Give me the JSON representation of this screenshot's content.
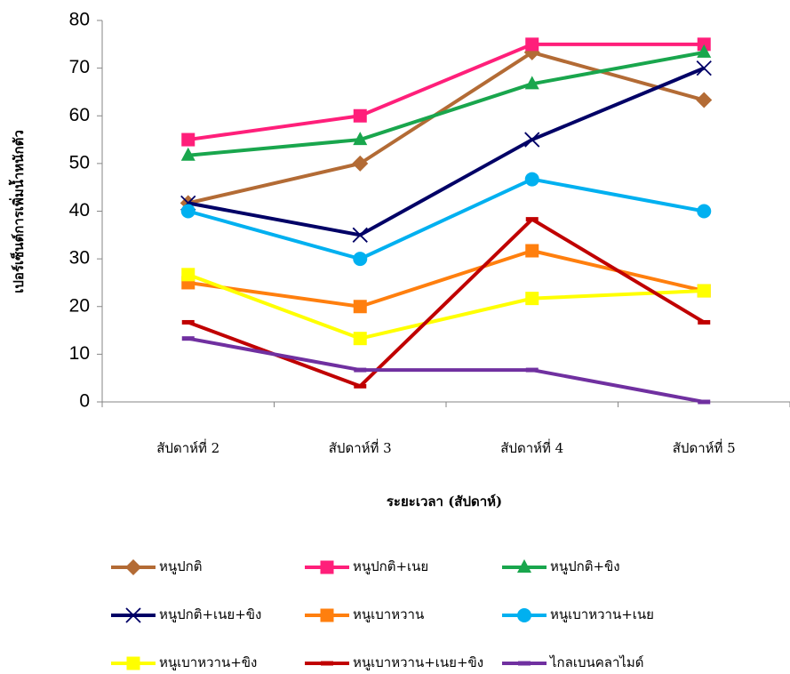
{
  "chart_data": {
    "type": "line",
    "y_label": "เปอร์เซ็นต์การเพิ่มน้ำหนักตัว",
    "x_label": "ระยะเวลา (สัปดาห์)",
    "categories": [
      "สัปดาห์ที่ 2",
      "สัปดาห์ที่ 3",
      "สัปดาห์ที่ 4",
      "สัปดาห์ที่ 5"
    ],
    "ylim": [
      0,
      80
    ],
    "yticks": [
      0,
      10,
      20,
      30,
      40,
      50,
      60,
      70,
      80
    ],
    "grid": false,
    "legend": "bottom",
    "series": [
      {
        "name": "หนูปกติ",
        "color": "#b36b35",
        "marker": "diamond",
        "values": [
          41.7,
          50,
          73.3,
          63.3
        ]
      },
      {
        "name": "หนูปกติ+เนย",
        "color": "#ff1f7a",
        "marker": "square",
        "values": [
          55,
          60,
          75,
          75
        ]
      },
      {
        "name": "หนูปกติ+ขิง",
        "color": "#19a64d",
        "marker": "triangle",
        "values": [
          51.7,
          55,
          66.7,
          73.3
        ]
      },
      {
        "name": "หนูปกติ+เนย+ขิง",
        "color": "#000066",
        "marker": "x",
        "values": [
          41.7,
          35,
          55,
          70
        ]
      },
      {
        "name": "หนูเบาหวาน",
        "color": "#ff7f0e",
        "marker": "square",
        "values": [
          25,
          20,
          31.7,
          23.3
        ]
      },
      {
        "name": "หนูเบาหวาน+เนย",
        "color": "#00b0f0",
        "marker": "circle",
        "values": [
          40,
          30,
          46.7,
          40
        ]
      },
      {
        "name": "หนูเบาหวาน+ขิง",
        "color": "#ffff00",
        "marker": "square",
        "values": [
          26.7,
          13.3,
          21.7,
          23.3
        ]
      },
      {
        "name": "หนูเบาหวาน+เนย+ขิง",
        "color": "#c00000",
        "marker": "dash",
        "values": [
          16.7,
          3.3,
          38.3,
          16.7
        ]
      },
      {
        "name": "ไกลเบนคลาไมด์",
        "color": "#7030a0",
        "marker": "dash",
        "values": [
          13.3,
          6.7,
          6.7,
          0
        ]
      }
    ]
  }
}
